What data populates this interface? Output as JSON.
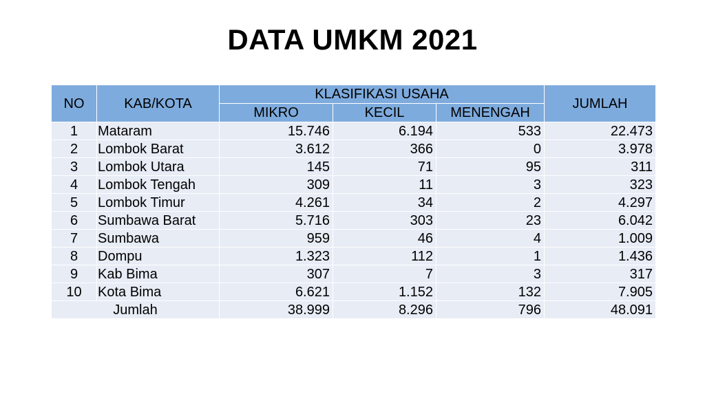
{
  "title": "DATA UMKM 2021",
  "table": {
    "headers": {
      "no": "NO",
      "kab_kota": "KAB/KOTA",
      "klasifikasi": "KLASIFIKASI USAHA",
      "mikro": "MIKRO",
      "kecil": "KECIL",
      "menengah": "MENENGAH",
      "jumlah": "JUMLAH"
    },
    "rows": [
      {
        "no": "1",
        "kab": "Mataram",
        "mikro": "15.746",
        "kecil": "6.194",
        "menengah": "533",
        "jumlah": "22.473"
      },
      {
        "no": "2",
        "kab": "Lombok Barat",
        "mikro": "3.612",
        "kecil": "366",
        "menengah": "0",
        "jumlah": "3.978"
      },
      {
        "no": "3",
        "kab": "Lombok Utara",
        "mikro": "145",
        "kecil": "71",
        "menengah": "95",
        "jumlah": "311"
      },
      {
        "no": "4",
        "kab": "Lombok Tengah",
        "mikro": "309",
        "kecil": "11",
        "menengah": "3",
        "jumlah": "323"
      },
      {
        "no": "5",
        "kab": "Lombok Timur",
        "mikro": "4.261",
        "kecil": "34",
        "menengah": "2",
        "jumlah": "4.297"
      },
      {
        "no": "6",
        "kab": "Sumbawa Barat",
        "mikro": "5.716",
        "kecil": "303",
        "menengah": "23",
        "jumlah": "6.042"
      },
      {
        "no": "7",
        "kab": "Sumbawa",
        "mikro": "959",
        "kecil": "46",
        "menengah": "4",
        "jumlah": "1.009"
      },
      {
        "no": "8",
        "kab": "Dompu",
        "mikro": "1.323",
        "kecil": "112",
        "menengah": "1",
        "jumlah": "1.436"
      },
      {
        "no": "9",
        "kab": "Kab Bima",
        "mikro": "307",
        "kecil": "7",
        "menengah": "3",
        "jumlah": "317"
      },
      {
        "no": "10",
        "kab": "Kota Bima",
        "mikro": "6.621",
        "kecil": "1.152",
        "menengah": "132",
        "jumlah": "7.905"
      }
    ],
    "total": {
      "label": "Jumlah",
      "mikro": "38.999",
      "kecil": "8.296",
      "menengah": "796",
      "jumlah": "48.091"
    }
  },
  "colors": {
    "header_bg": "#7eabdd",
    "row_bg": "#e7ecf5"
  }
}
